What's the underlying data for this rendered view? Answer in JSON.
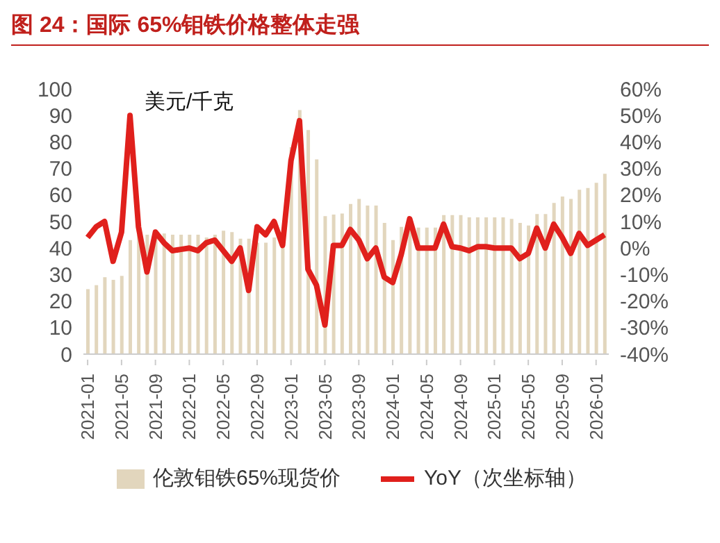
{
  "chart_data": {
    "type": "bar",
    "title": "图 24：国际 65%钼铁价格整体走强",
    "ylabel": "美元/千克",
    "categories": [
      "2021-01",
      null,
      null,
      null,
      "2021-05",
      null,
      null,
      null,
      "2021-09",
      null,
      null,
      null,
      "2022-01",
      null,
      null,
      null,
      "2022-05",
      null,
      null,
      null,
      "2022-09",
      null,
      null,
      null,
      "2023-01",
      null,
      null,
      null,
      "2023-05",
      null,
      null,
      null,
      "2023-09",
      null,
      null,
      null,
      "2024-01",
      null,
      null,
      null,
      "2024-05",
      null,
      null,
      null,
      "2024-09",
      null,
      null,
      null,
      "2025-01",
      null,
      null,
      null,
      "2025-05",
      null,
      null,
      null,
      "2025-09",
      null,
      null,
      null,
      "2026-01",
      null
    ],
    "series": [
      {
        "name": "伦敦钼铁65%现货价",
        "color": "#e2d6bd",
        "values": [
          24.5,
          26,
          29,
          28,
          29.5,
          43,
          45,
          45,
          45,
          45.5,
          45,
          45,
          45,
          45,
          44,
          45,
          46.5,
          46,
          43.5,
          43.5,
          42,
          42,
          44,
          46,
          78,
          92,
          84.5,
          73.4,
          52,
          52.6,
          53,
          56.6,
          58.5,
          56,
          56,
          49.5,
          43,
          48,
          48,
          47.7,
          47.7,
          47.7,
          52.4,
          52.4,
          52.4,
          51.6,
          51.6,
          51.6,
          51.6,
          51.6,
          51,
          49.5,
          48.5,
          52.8,
          52.8,
          57,
          59.4,
          58.5,
          62,
          62.6,
          64.6,
          68
        ]
      },
      {
        "name": "YoY（次坐标轴）",
        "type": "line",
        "axis": "y2",
        "color": "#e0201c",
        "values": [
          4,
          8,
          10,
          -5,
          6,
          50,
          8,
          -9,
          6,
          2,
          -1,
          -0.5,
          0,
          -1,
          2,
          3,
          -1,
          -5,
          0,
          -16,
          8,
          5,
          10,
          1,
          33,
          48,
          -8,
          -14,
          -29,
          1,
          1,
          7,
          3,
          -4,
          0,
          -11,
          -13,
          -2.5,
          11,
          0,
          0,
          0,
          9,
          0.5,
          0,
          -1,
          0.5,
          0.5,
          0,
          0,
          0,
          -4,
          -2,
          7.5,
          0,
          9,
          4,
          -2,
          5.5,
          1,
          3,
          5
        ]
      }
    ],
    "ylim": [
      0,
      100
    ],
    "yticks": [
      0,
      10,
      20,
      30,
      40,
      50,
      60,
      70,
      80,
      90,
      100
    ],
    "y2lim": [
      -40,
      60
    ],
    "y2ticks": [
      {
        "value": -40,
        "label": "-40%"
      },
      {
        "value": -30,
        "label": "-30%"
      },
      {
        "value": -20,
        "label": "-20%"
      },
      {
        "value": -10,
        "label": "-10%"
      },
      {
        "value": 0,
        "label": "0%"
      },
      {
        "value": 10,
        "label": "10%"
      },
      {
        "value": 20,
        "label": "20%"
      },
      {
        "value": 30,
        "label": "30%"
      },
      {
        "value": 40,
        "label": "40%"
      },
      {
        "value": 50,
        "label": "50%"
      },
      {
        "value": 60,
        "label": "60%"
      }
    ],
    "grid": false,
    "legend": "bottom",
    "marker": "none",
    "line_style": "solid"
  }
}
